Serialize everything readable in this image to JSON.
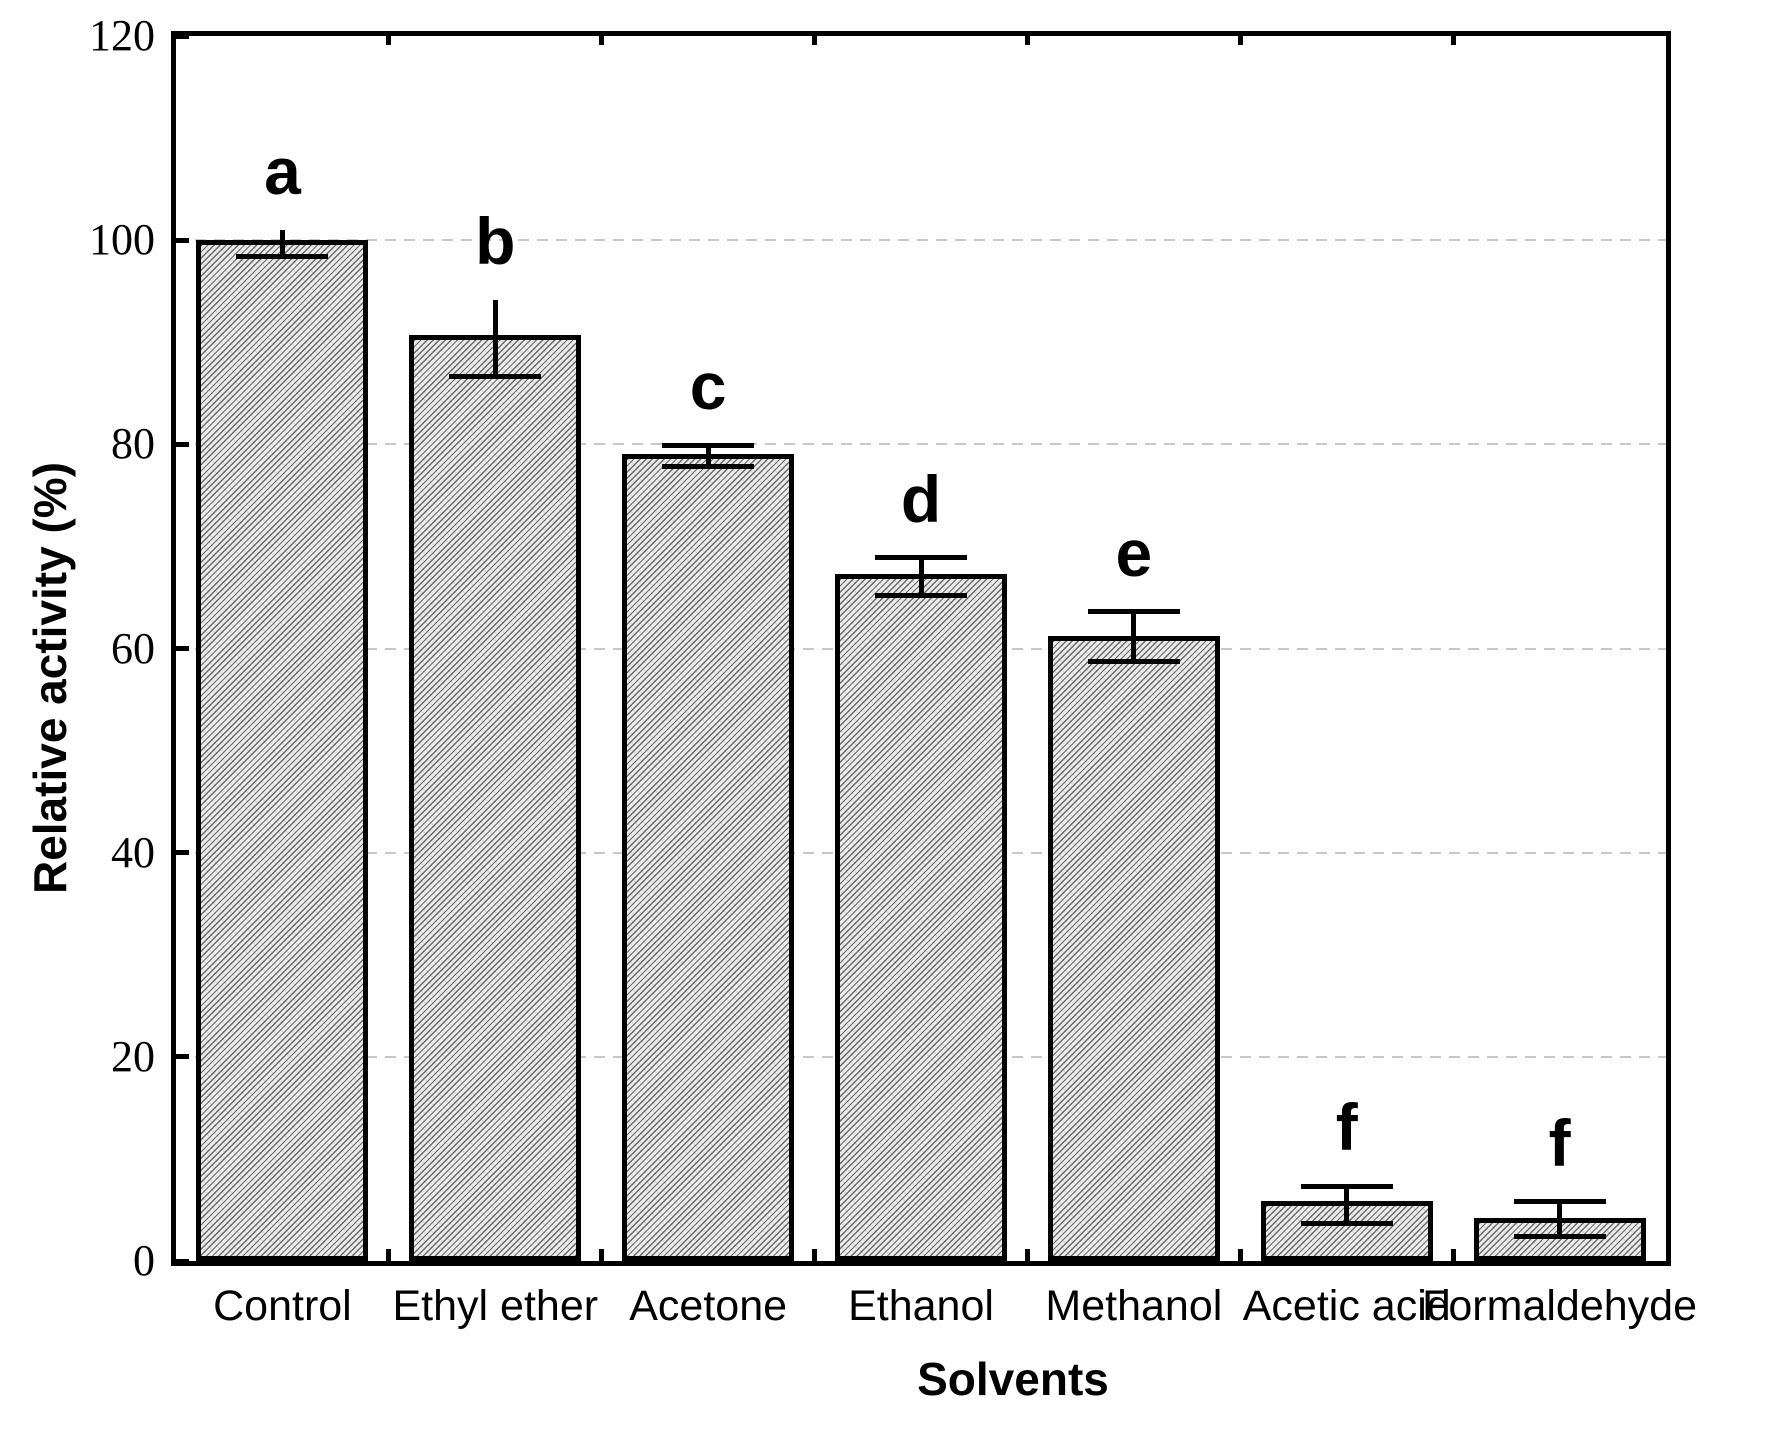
{
  "chart_data": {
    "type": "bar",
    "title": "",
    "xlabel": "Solvents",
    "ylabel": "Relative activity (%)",
    "categories": [
      "Control",
      "Ethyl ether",
      "Acetone",
      "Ethanol",
      "Methanol",
      "Acetic acid",
      "Formaldehyde"
    ],
    "values": [
      100.0,
      90.7,
      79.1,
      67.3,
      61.2,
      5.9,
      4.2
    ],
    "error_upper_abs": [
      101.0,
      94.1,
      79.9,
      68.9,
      63.6,
      7.3,
      5.8
    ],
    "error_lower_abs": [
      98.4,
      86.6,
      77.8,
      65.2,
      58.7,
      3.7,
      2.4
    ],
    "error_cap_top": [
      false,
      false,
      true,
      true,
      true,
      true,
      true
    ],
    "error_cap_bottom": [
      true,
      true,
      true,
      true,
      true,
      true,
      true
    ],
    "significance_letters": [
      "a",
      "b",
      "c",
      "d",
      "e",
      "f",
      "f"
    ],
    "ylim": [
      0,
      120
    ],
    "yticks": [
      0,
      20,
      40,
      60,
      80,
      100,
      120
    ],
    "grid_values": [
      20,
      40,
      60,
      80,
      100
    ],
    "grid_style": "dashed",
    "legend_position": "none",
    "bar_hatch": "diagonal-forward-slash"
  },
  "style": {
    "axis_color": "#000000",
    "text_color": "#000000",
    "grid_color": "#c8c8c8",
    "bar_fill": "#ededed",
    "hatch_color": "#000000",
    "background": "#ffffff"
  }
}
